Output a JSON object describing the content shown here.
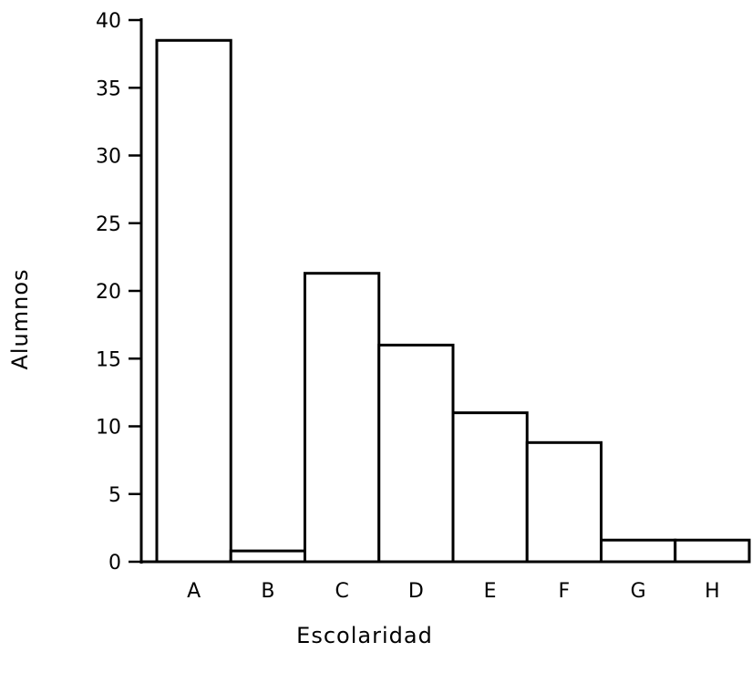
{
  "chart_data": {
    "type": "bar",
    "title": "",
    "xlabel": "Escolaridad",
    "ylabel": "Alumnos",
    "categories": [
      "A",
      "B",
      "C",
      "D",
      "E",
      "F",
      "G",
      "H"
    ],
    "values": [
      38.5,
      0.8,
      21.3,
      16.0,
      11.0,
      8.8,
      1.6,
      1.6
    ],
    "ylim": [
      0,
      40
    ],
    "yticks": [
      0,
      5,
      10,
      15,
      20,
      25,
      30,
      35,
      40
    ],
    "grid": false,
    "legend": "none"
  }
}
